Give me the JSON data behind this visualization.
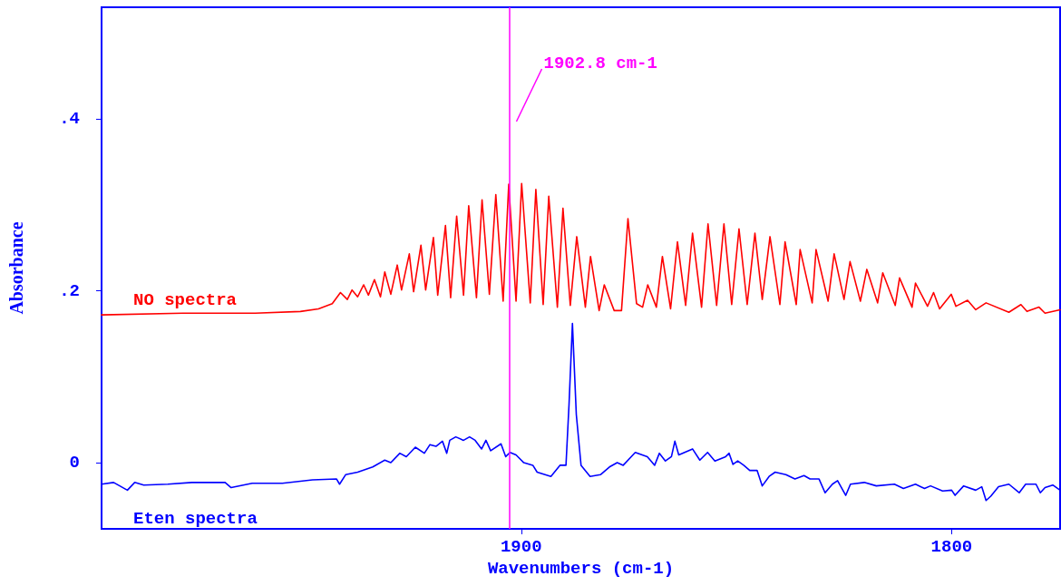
{
  "chart_data": {
    "type": "line",
    "xlabel": "Wavenumbers (cm-1)",
    "ylabel": "Absorbance",
    "xlim": [
      1997.5,
      1774.8
    ],
    "xticks": [
      1900,
      1800
    ],
    "ylim": [
      -0.077,
      0.53
    ],
    "yticks": [
      0,
      {
        "value": 0.2,
        "label": ".2"
      },
      {
        "value": 0.4,
        "label": ".4"
      }
    ],
    "grid": false,
    "legend": false,
    "marker": "none",
    "line_style": "solid",
    "ref_lines": [
      {
        "axis": "x",
        "value": 1902.8,
        "label": "1902.8 cm-1",
        "color": "#ff00ff"
      }
    ],
    "series": [
      {
        "name": "NO spectra",
        "color": "#ff0000",
        "x": [
          1997.5,
          1978.6,
          1961.8,
          1951.3,
          1947.1,
          1943.9,
          1942.0,
          1940.4,
          1939.3,
          1938.0,
          1936.6,
          1935.5,
          1934.1,
          1932.7,
          1931.7,
          1930.3,
          1928.8,
          1927.8,
          1926.0,
          1925.0,
          1923.3,
          1922.2,
          1920.4,
          1919.4,
          1917.6,
          1916.4,
          1915.0,
          1913.4,
          1912.2,
          1910.4,
          1909.1,
          1907.4,
          1905.9,
          1904.2,
          1902.9,
          1901.2,
          1899.9,
          1897.9,
          1896.6,
          1894.9,
          1893.6,
          1891.6,
          1890.3,
          1888.6,
          1887.1,
          1885.1,
          1883.9,
          1881.9,
          1880.7,
          1878.4,
          1876.7,
          1875.2,
          1873.2,
          1871.8,
          1870.6,
          1868.6,
          1867.2,
          1865.3,
          1863.7,
          1861.8,
          1860.2,
          1858.1,
          1856.6,
          1854.6,
          1852.9,
          1851.1,
          1849.4,
          1847.5,
          1845.7,
          1844.0,
          1842.2,
          1839.9,
          1838.7,
          1836.1,
          1835.2,
          1832.4,
          1831.5,
          1828.7,
          1827.3,
          1825.0,
          1823.6,
          1821.2,
          1819.7,
          1817.2,
          1816.0,
          1813.1,
          1812.1,
          1809.2,
          1808.4,
          1805.6,
          1804.2,
          1802.8,
          1800.1,
          1799.0,
          1796.3,
          1794.4,
          1792.0,
          1786.7,
          1783.9,
          1782.5,
          1779.7,
          1778.3,
          1774.8
        ],
        "values": [
          0.172,
          0.174,
          0.174,
          0.176,
          0.179,
          0.185,
          0.198,
          0.19,
          0.201,
          0.193,
          0.207,
          0.195,
          0.213,
          0.193,
          0.222,
          0.196,
          0.23,
          0.201,
          0.243,
          0.199,
          0.253,
          0.201,
          0.262,
          0.195,
          0.276,
          0.192,
          0.287,
          0.195,
          0.299,
          0.192,
          0.306,
          0.196,
          0.312,
          0.188,
          0.324,
          0.188,
          0.325,
          0.186,
          0.318,
          0.184,
          0.31,
          0.181,
          0.296,
          0.183,
          0.263,
          0.181,
          0.24,
          0.177,
          0.207,
          0.177,
          0.177,
          0.284,
          0.185,
          0.181,
          0.207,
          0.181,
          0.24,
          0.179,
          0.257,
          0.183,
          0.267,
          0.181,
          0.278,
          0.183,
          0.278,
          0.184,
          0.272,
          0.184,
          0.267,
          0.19,
          0.263,
          0.184,
          0.257,
          0.184,
          0.248,
          0.186,
          0.248,
          0.188,
          0.243,
          0.19,
          0.234,
          0.188,
          0.225,
          0.186,
          0.221,
          0.183,
          0.215,
          0.181,
          0.209,
          0.182,
          0.198,
          0.179,
          0.196,
          0.182,
          0.189,
          0.178,
          0.186,
          0.175,
          0.184,
          0.176,
          0.181,
          0.174,
          0.178
        ]
      },
      {
        "name": "Eten spectra",
        "color": "#0000ff",
        "x": [
          1997.5,
          1994.7,
          1991.5,
          1989.8,
          1987.7,
          1982.1,
          1976.5,
          1968.8,
          1967.4,
          1962.5,
          1955.5,
          1948.5,
          1942.9,
          1942.2,
          1940.8,
          1938.0,
          1934.5,
          1931.7,
          1930.3,
          1928.2,
          1926.7,
          1924.6,
          1922.5,
          1921.2,
          1919.8,
          1918.3,
          1917.3,
          1916.6,
          1915.2,
          1913.4,
          1912.0,
          1910.7,
          1909.2,
          1908.2,
          1907.1,
          1904.7,
          1903.6,
          1902.6,
          1901.2,
          1899.4,
          1897.3,
          1896.3,
          1893.1,
          1891.0,
          1889.6,
          1888.9,
          1888.1,
          1887.2,
          1886.1,
          1884.0,
          1881.6,
          1879.5,
          1877.7,
          1876.3,
          1873.5,
          1870.7,
          1869.0,
          1867.9,
          1866.5,
          1865.1,
          1864.3,
          1863.4,
          1860.2,
          1858.5,
          1856.7,
          1855.0,
          1852.5,
          1851.7,
          1850.8,
          1849.7,
          1848.3,
          1846.9,
          1845.2,
          1844.0,
          1842.4,
          1841.0,
          1838.5,
          1836.4,
          1834.3,
          1832.9,
          1830.8,
          1829.4,
          1827.7,
          1826.5,
          1824.6,
          1823.5,
          1820.3,
          1817.5,
          1813.3,
          1811.2,
          1808.4,
          1806.3,
          1804.9,
          1802.1,
          1800.0,
          1799.2,
          1797.2,
          1794.4,
          1793.0,
          1792.0,
          1790.9,
          1789.1,
          1786.7,
          1784.3,
          1782.8,
          1780.4,
          1779.4,
          1778.3,
          1776.5,
          1774.8
        ],
        "values": [
          -0.025,
          -0.023,
          -0.032,
          -0.023,
          -0.026,
          -0.025,
          -0.023,
          -0.023,
          -0.029,
          -0.024,
          -0.024,
          -0.02,
          -0.019,
          -0.025,
          -0.014,
          -0.011,
          -0.005,
          0.003,
          0,
          0.011,
          0.007,
          0.018,
          0.011,
          0.021,
          0.019,
          0.025,
          0.011,
          0.026,
          0.03,
          0.026,
          0.03,
          0.026,
          0.016,
          0.026,
          0.014,
          0.022,
          0.007,
          0.012,
          0.009,
          0,
          -0.003,
          -0.011,
          -0.016,
          -0.003,
          -0.003,
          0.067,
          0.162,
          0.056,
          -0.003,
          -0.016,
          -0.014,
          -0.005,
          0,
          -0.003,
          0.012,
          0.007,
          -0.003,
          0.011,
          0.002,
          0.007,
          0.025,
          0.009,
          0.016,
          0.003,
          0.012,
          0.002,
          0.007,
          0.011,
          -0.002,
          0.002,
          -0.003,
          -0.009,
          -0.009,
          -0.027,
          -0.016,
          -0.011,
          -0.014,
          -0.019,
          -0.015,
          -0.019,
          -0.019,
          -0.035,
          -0.025,
          -0.021,
          -0.038,
          -0.025,
          -0.023,
          -0.027,
          -0.025,
          -0.03,
          -0.025,
          -0.03,
          -0.027,
          -0.033,
          -0.032,
          -0.038,
          -0.027,
          -0.032,
          -0.028,
          -0.044,
          -0.039,
          -0.028,
          -0.025,
          -0.035,
          -0.025,
          -0.025,
          -0.035,
          -0.029,
          -0.026,
          -0.032
        ]
      }
    ]
  }
}
